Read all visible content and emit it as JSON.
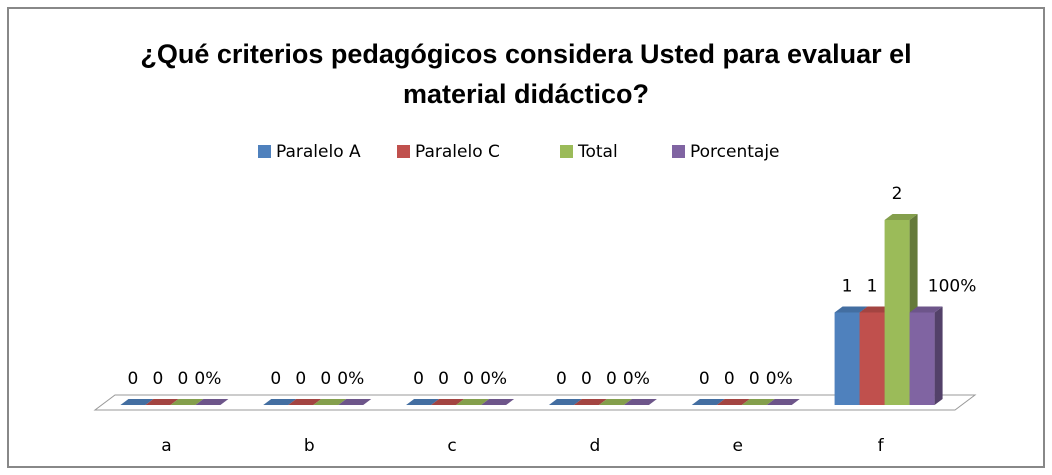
{
  "chart_data": {
    "type": "bar3d",
    "title": "¿Qué criterios pedagógicos considera Usted para evaluar el material didáctico?",
    "categories": [
      "a",
      "b",
      "c",
      "d",
      "e",
      "f"
    ],
    "series": [
      {
        "name": "Paralelo A",
        "color": "#4f81bd",
        "values": [
          0,
          0,
          0,
          0,
          0,
          1
        ]
      },
      {
        "name": "Paralelo C",
        "color": "#c0504d",
        "values": [
          0,
          0,
          0,
          0,
          0,
          1
        ]
      },
      {
        "name": "Total",
        "color": "#9bbb59",
        "values": [
          0,
          0,
          0,
          0,
          0,
          2
        ]
      },
      {
        "name": "Porcentaje",
        "color": "#8064a2",
        "values": [
          0,
          0,
          0,
          0,
          0,
          1
        ],
        "value_labels": [
          "0%",
          "0%",
          "0%",
          "0%",
          "0%",
          "100%"
        ]
      }
    ],
    "legend": "top"
  }
}
